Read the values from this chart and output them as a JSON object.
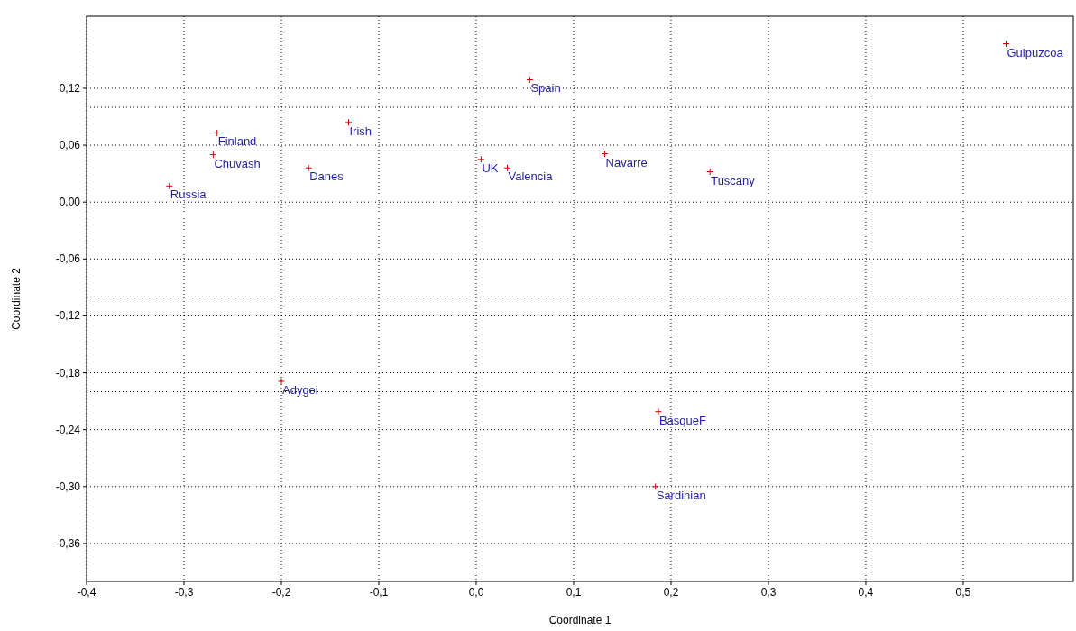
{
  "chart_data": {
    "type": "scatter",
    "xlabel": "Coordinate 1",
    "ylabel": "Coordinate 2",
    "xlim": [
      -0.4,
      0.613
    ],
    "ylim": [
      -0.4,
      0.196
    ],
    "xticks": [
      {
        "value": -0.4,
        "label": "-0,4"
      },
      {
        "value": -0.3,
        "label": "-0,3"
      },
      {
        "value": -0.2,
        "label": "-0,2"
      },
      {
        "value": -0.1,
        "label": "-0,1"
      },
      {
        "value": 0,
        "label": "0,0"
      },
      {
        "value": 0.1,
        "label": "0,1"
      },
      {
        "value": 0.2,
        "label": "0,2"
      },
      {
        "value": 0.3,
        "label": "0,3"
      },
      {
        "value": 0.4,
        "label": "0,4"
      },
      {
        "value": 0.5,
        "label": "0,5"
      }
    ],
    "yticks": [
      {
        "value": 0.12,
        "label": "0,12"
      },
      {
        "value": 0.1,
        "label": null
      },
      {
        "value": 0.06,
        "label": "0,06"
      },
      {
        "value": 0,
        "label": "0,00"
      },
      {
        "value": -0.06,
        "label": "-0,06"
      },
      {
        "value": -0.1,
        "label": null
      },
      {
        "value": -0.12,
        "label": "-0,12"
      },
      {
        "value": -0.18,
        "label": "-0,18"
      },
      {
        "value": -0.2,
        "label": null
      },
      {
        "value": -0.24,
        "label": "-0,24"
      },
      {
        "value": -0.3,
        "label": "-0,30"
      },
      {
        "value": -0.36,
        "label": "-0,36"
      }
    ],
    "grid": true,
    "marker": "cross",
    "series": [
      {
        "color": "#cc0000",
        "x": [
          0.544,
          0.055,
          -0.131,
          -0.266,
          -0.27,
          -0.172,
          -0.315,
          0.005,
          0.032,
          0.132,
          0.24,
          -0.2,
          0.187,
          0.184
        ],
        "values": [
          0.167,
          0.129,
          0.084,
          0.073,
          0.05,
          0.036,
          0.017,
          0.045,
          0.036,
          0.051,
          0.032,
          -0.189,
          -0.221,
          -0.3
        ]
      }
    ],
    "annotations": [
      {
        "text": "Guipuzcoa",
        "x": 0.544,
        "y": 0.167
      },
      {
        "text": "Spain",
        "x": 0.055,
        "y": 0.129
      },
      {
        "text": "Irish",
        "x": -0.131,
        "y": 0.084
      },
      {
        "text": "Finland",
        "x": -0.266,
        "y": 0.073
      },
      {
        "text": "Chuvash",
        "x": -0.27,
        "y": 0.05
      },
      {
        "text": "Danes",
        "x": -0.172,
        "y": 0.036
      },
      {
        "text": "Russia",
        "x": -0.315,
        "y": 0.017
      },
      {
        "text": "UK",
        "x": 0.005,
        "y": 0.045
      },
      {
        "text": "Valencia",
        "x": 0.032,
        "y": 0.036
      },
      {
        "text": "Navarre",
        "x": 0.132,
        "y": 0.051
      },
      {
        "text": "Tuscany",
        "x": 0.24,
        "y": 0.032
      },
      {
        "text": "Adygei",
        "x": -0.2,
        "y": -0.189
      },
      {
        "text": "BasqueF",
        "x": 0.187,
        "y": -0.221
      },
      {
        "text": "Sardinian",
        "x": 0.184,
        "y": -0.3
      }
    ]
  }
}
